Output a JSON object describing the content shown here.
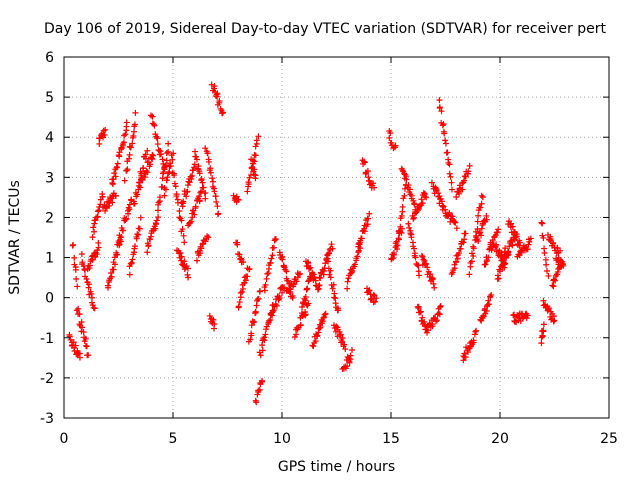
{
  "chart_data": {
    "type": "scatter",
    "title": "Day 106 of 2019, Sidereal Day-to-day VTEC variation (SDTVAR) for receiver pert",
    "xlabel": "GPS time / hours",
    "ylabel": "SDTVAR / TECUs",
    "xlim": [
      0,
      25
    ],
    "ylim": [
      -3,
      6
    ],
    "xticks": [
      0,
      5,
      10,
      15,
      20,
      25
    ],
    "yticks": [
      -3,
      -2,
      -1,
      0,
      1,
      2,
      3,
      4,
      5,
      6
    ],
    "grid": true,
    "marker": "+",
    "color": "#ff0000",
    "series": [
      {
        "name": "SDTVAR",
        "tracks": [
          {
            "x0": 0.25,
            "x1": 0.75,
            "y0": -1.0,
            "y1": -1.5
          },
          {
            "x0": 0.4,
            "x1": 0.6,
            "y0": 1.4,
            "y1": 0.3
          },
          {
            "x0": 0.6,
            "x1": 1.1,
            "y0": -0.3,
            "y1": -1.4
          },
          {
            "x0": 0.8,
            "x1": 1.4,
            "y0": 1.0,
            "y1": -0.3
          },
          {
            "x0": 1.1,
            "x1": 1.6,
            "y0": 0.7,
            "y1": 1.3
          },
          {
            "x0": 1.3,
            "x1": 1.8,
            "y0": 1.6,
            "y1": 2.6
          },
          {
            "x0": 1.6,
            "x1": 1.9,
            "y0": 3.9,
            "y1": 4.1
          },
          {
            "x0": 1.8,
            "x1": 2.4,
            "y0": 2.2,
            "y1": 2.6
          },
          {
            "x0": 2.0,
            "x1": 2.6,
            "y0": 0.2,
            "y1": 1.5
          },
          {
            "x0": 2.2,
            "x1": 2.9,
            "y0": 2.8,
            "y1": 4.3
          },
          {
            "x0": 2.5,
            "x1": 3.1,
            "y0": 1.4,
            "y1": 2.4
          },
          {
            "x0": 2.8,
            "x1": 3.3,
            "y0": 3.0,
            "y1": 4.5
          },
          {
            "x0": 3.0,
            "x1": 3.5,
            "y0": 0.6,
            "y1": 1.9
          },
          {
            "x0": 3.2,
            "x1": 3.8,
            "y0": 2.3,
            "y1": 3.7
          },
          {
            "x0": 3.5,
            "x1": 4.1,
            "y0": 2.8,
            "y1": 3.6
          },
          {
            "x0": 3.8,
            "x1": 4.3,
            "y0": 1.2,
            "y1": 2.0
          },
          {
            "x0": 4.0,
            "x1": 4.6,
            "y0": 4.6,
            "y1": 3.2
          },
          {
            "x0": 4.3,
            "x1": 4.8,
            "y0": 2.2,
            "y1": 3.8
          },
          {
            "x0": 4.6,
            "x1": 5.0,
            "y0": 2.6,
            "y1": 3.6
          },
          {
            "x0": 5.0,
            "x1": 5.5,
            "y0": 3.2,
            "y1": 1.4
          },
          {
            "x0": 5.2,
            "x1": 5.7,
            "y0": 1.2,
            "y1": 0.6
          },
          {
            "x0": 5.4,
            "x1": 6.0,
            "y0": 2.3,
            "y1": 3.3
          },
          {
            "x0": 5.7,
            "x1": 6.3,
            "y0": 1.8,
            "y1": 2.6
          },
          {
            "x0": 6.0,
            "x1": 6.5,
            "y0": 3.6,
            "y1": 2.5
          },
          {
            "x0": 6.1,
            "x1": 6.6,
            "y0": 1.0,
            "y1": 1.6
          },
          {
            "x0": 6.5,
            "x1": 7.1,
            "y0": 3.8,
            "y1": 2.1
          },
          {
            "x0": 6.8,
            "x1": 7.3,
            "y0": 5.3,
            "y1": 4.6
          },
          {
            "x0": 6.7,
            "x1": 6.9,
            "y0": -0.5,
            "y1": -0.7
          },
          {
            "x0": 7.8,
            "x1": 8.0,
            "y0": 2.5,
            "y1": 2.5
          },
          {
            "x0": 7.9,
            "x1": 8.2,
            "y0": 1.4,
            "y1": 0.8
          },
          {
            "x0": 8.0,
            "x1": 8.5,
            "y0": -0.2,
            "y1": 0.8
          },
          {
            "x0": 8.4,
            "x1": 8.9,
            "y0": 2.6,
            "y1": 4.0
          },
          {
            "x0": 8.6,
            "x1": 8.8,
            "y0": 3.4,
            "y1": 3.0
          },
          {
            "x0": 8.5,
            "x1": 9.0,
            "y0": -1.1,
            "y1": 0.2
          },
          {
            "x0": 8.8,
            "x1": 9.1,
            "y0": -2.6,
            "y1": -2.0
          },
          {
            "x0": 9.0,
            "x1": 9.6,
            "y0": -1.4,
            "y1": -0.2
          },
          {
            "x0": 9.2,
            "x1": 9.7,
            "y0": 0.2,
            "y1": 1.5
          },
          {
            "x0": 9.5,
            "x1": 10.1,
            "y0": -0.4,
            "y1": 0.3
          },
          {
            "x0": 9.9,
            "x1": 10.5,
            "y0": 1.1,
            "y1": 0.0
          },
          {
            "x0": 10.2,
            "x1": 10.8,
            "y0": 0.1,
            "y1": 0.6
          },
          {
            "x0": 10.6,
            "x1": 11.2,
            "y0": -0.9,
            "y1": -0.2
          },
          {
            "x0": 10.9,
            "x1": 11.4,
            "y0": -0.3,
            "y1": 0.7
          },
          {
            "x0": 11.1,
            "x1": 11.7,
            "y0": 0.9,
            "y1": 0.2
          },
          {
            "x0": 11.4,
            "x1": 12.0,
            "y0": -1.2,
            "y1": -0.4
          },
          {
            "x0": 11.7,
            "x1": 12.3,
            "y0": 0.4,
            "y1": 1.3
          },
          {
            "x0": 12.1,
            "x1": 12.6,
            "y0": 0.9,
            "y1": -0.4
          },
          {
            "x0": 12.4,
            "x1": 12.9,
            "y0": -0.7,
            "y1": -1.2
          },
          {
            "x0": 12.8,
            "x1": 13.2,
            "y0": -1.8,
            "y1": -1.4
          },
          {
            "x0": 13.0,
            "x1": 13.6,
            "y0": 0.3,
            "y1": 1.4
          },
          {
            "x0": 13.5,
            "x1": 14.0,
            "y0": 1.3,
            "y1": 2.0
          },
          {
            "x0": 13.7,
            "x1": 14.2,
            "y0": 3.4,
            "y1": 2.7
          },
          {
            "x0": 13.9,
            "x1": 14.3,
            "y0": 0.2,
            "y1": -0.1
          },
          {
            "x0": 14.9,
            "x1": 15.2,
            "y0": 4.1,
            "y1": 3.7
          },
          {
            "x0": 15.0,
            "x1": 15.5,
            "y0": 0.9,
            "y1": 1.7
          },
          {
            "x0": 15.3,
            "x1": 15.7,
            "y0": 1.3,
            "y1": 2.9
          },
          {
            "x0": 15.5,
            "x1": 16.1,
            "y0": 3.3,
            "y1": 2.2
          },
          {
            "x0": 15.8,
            "x1": 16.3,
            "y0": 1.9,
            "y1": 0.6
          },
          {
            "x0": 16.0,
            "x1": 16.6,
            "y0": 2.0,
            "y1": 2.6
          },
          {
            "x0": 16.2,
            "x1": 16.7,
            "y0": -0.2,
            "y1": -0.9
          },
          {
            "x0": 16.4,
            "x1": 17.0,
            "y0": 1.0,
            "y1": 0.3
          },
          {
            "x0": 16.7,
            "x1": 17.3,
            "y0": -0.8,
            "y1": -0.3
          },
          {
            "x0": 16.9,
            "x1": 17.4,
            "y0": 2.8,
            "y1": 2.3
          },
          {
            "x0": 17.2,
            "x1": 17.8,
            "y0": 4.9,
            "y1": 2.8
          },
          {
            "x0": 17.4,
            "x1": 18.0,
            "y0": 2.2,
            "y1": 1.8
          },
          {
            "x0": 17.8,
            "x1": 18.4,
            "y0": 0.6,
            "y1": 1.6
          },
          {
            "x0": 18.0,
            "x1": 18.6,
            "y0": 2.5,
            "y1": 3.2
          },
          {
            "x0": 18.3,
            "x1": 18.9,
            "y0": -1.5,
            "y1": -0.9
          },
          {
            "x0": 18.6,
            "x1": 19.2,
            "y0": 0.6,
            "y1": 2.6
          },
          {
            "x0": 18.9,
            "x1": 19.4,
            "y0": 1.4,
            "y1": 2.0
          },
          {
            "x0": 19.1,
            "x1": 19.6,
            "y0": -0.6,
            "y1": 0.0
          },
          {
            "x0": 19.3,
            "x1": 19.9,
            "y0": 0.9,
            "y1": 1.6
          },
          {
            "x0": 19.6,
            "x1": 20.2,
            "y0": 1.4,
            "y1": 0.9
          },
          {
            "x0": 19.9,
            "x1": 20.4,
            "y0": 0.5,
            "y1": 1.1
          },
          {
            "x0": 20.1,
            "x1": 20.7,
            "y0": 1.0,
            "y1": 1.5
          },
          {
            "x0": 20.4,
            "x1": 21.0,
            "y0": 1.9,
            "y1": 1.2
          },
          {
            "x0": 20.6,
            "x1": 21.3,
            "y0": -0.5,
            "y1": -0.5
          },
          {
            "x0": 20.8,
            "x1": 21.4,
            "y0": 1.0,
            "y1": 1.4
          },
          {
            "x0": 21.9,
            "x1": 22.2,
            "y0": 1.9,
            "y1": 0.6
          },
          {
            "x0": 22.0,
            "x1": 22.5,
            "y0": -0.1,
            "y1": -0.6
          },
          {
            "x0": 22.2,
            "x1": 22.7,
            "y0": 1.6,
            "y1": 0.9
          },
          {
            "x0": 22.4,
            "x1": 22.9,
            "y0": 0.3,
            "y1": 0.9
          },
          {
            "x0": 21.9,
            "x1": 22.0,
            "y0": -1.1,
            "y1": -0.7
          },
          {
            "x0": 22.6,
            "x1": 22.9,
            "y0": 1.2,
            "y1": 0.9
          }
        ]
      }
    ]
  }
}
